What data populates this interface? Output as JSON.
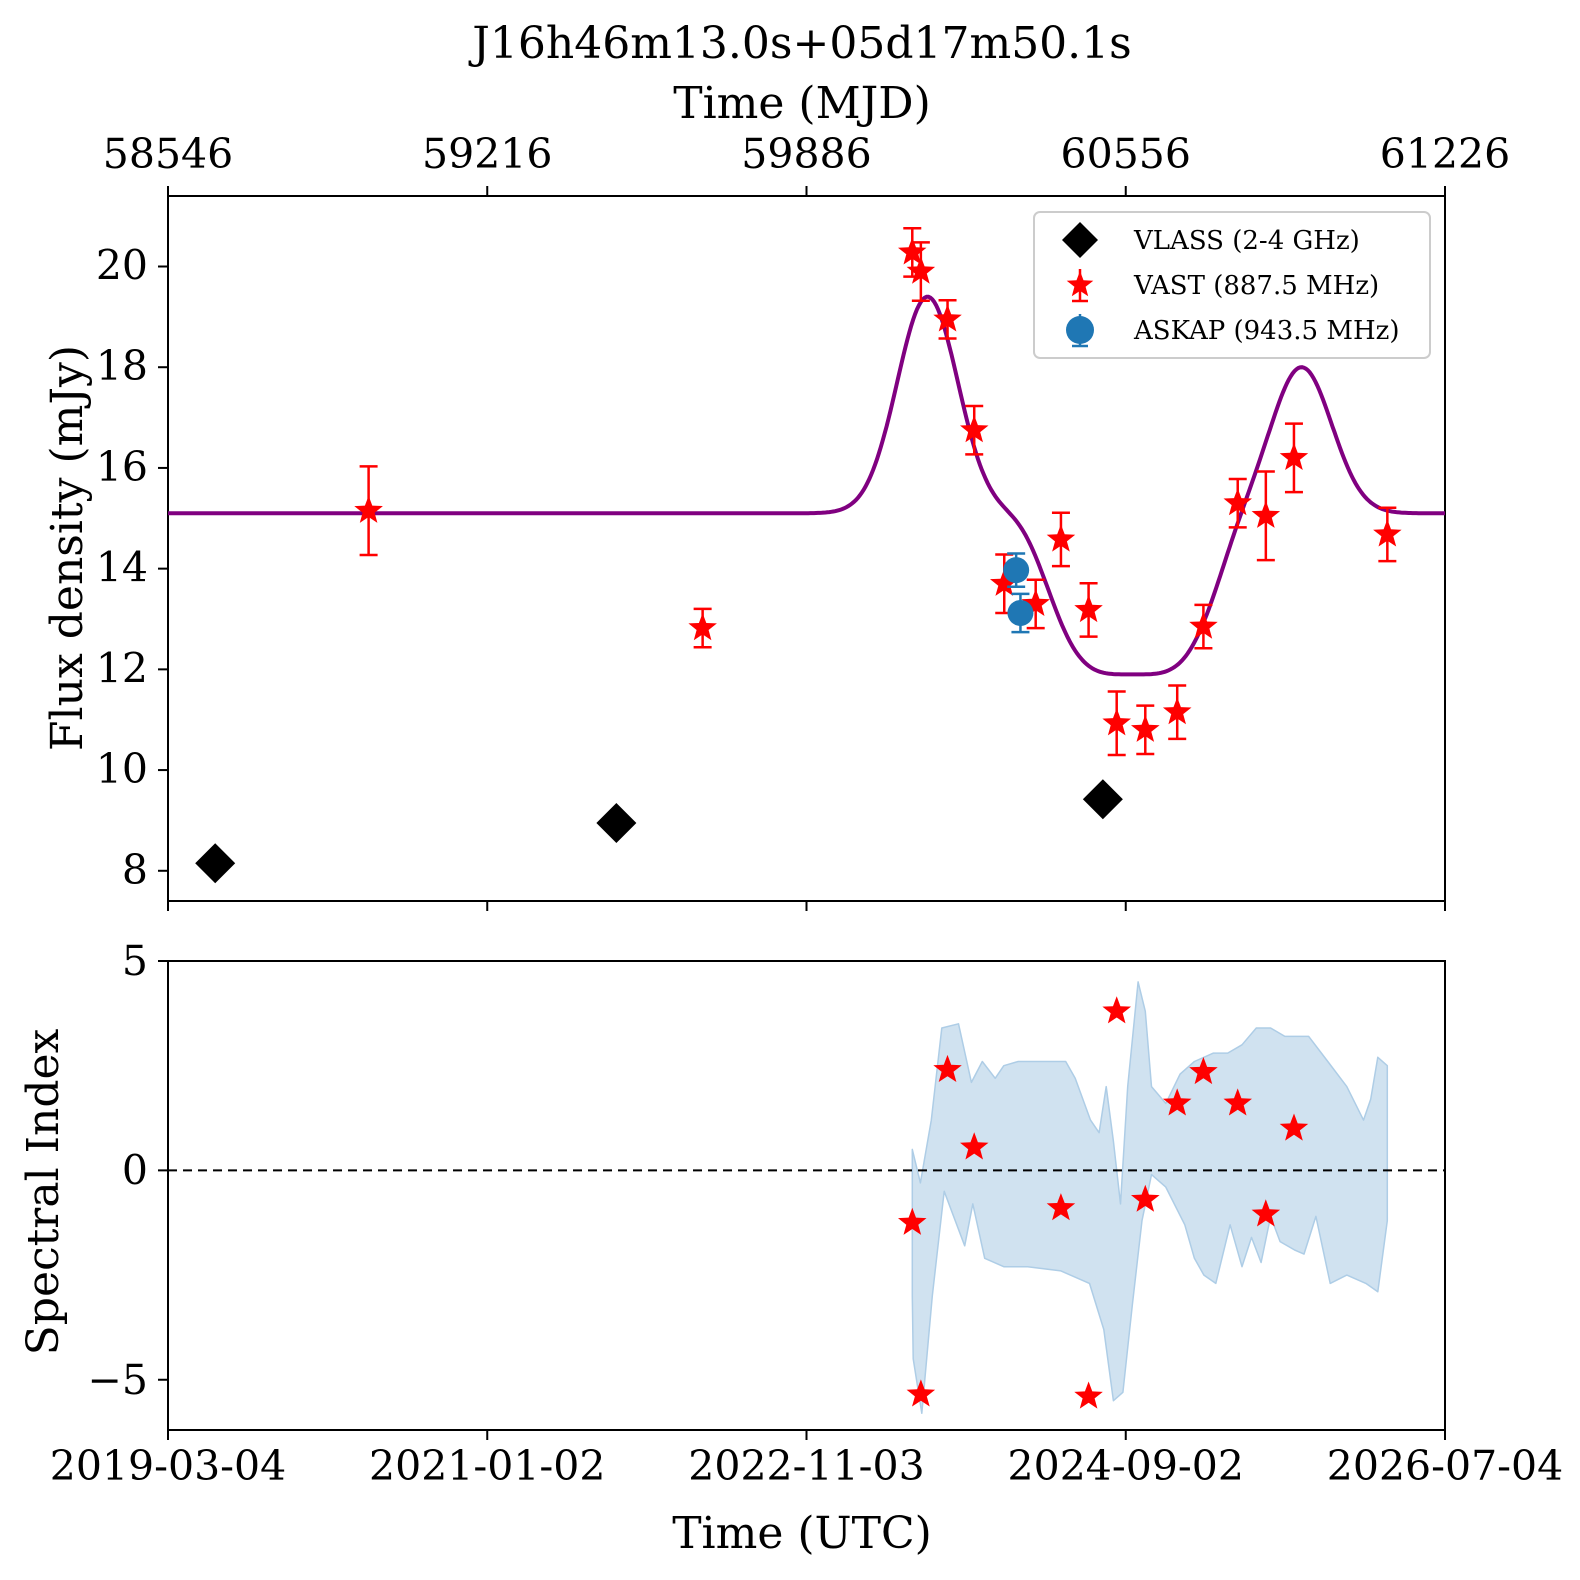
{
  "figure": {
    "title": "J16h46m13.0s+05d17m50.1s"
  },
  "chart_data": [
    {
      "type": "scatter",
      "panel": "top",
      "title": "J16h46m13.0s+05d17m50.1s",
      "xlabel": "Time (UTC)",
      "xlabel_top": "Time (MJD)",
      "ylabel": "Flux density (mJy)",
      "xlim": [
        58546,
        61226
      ],
      "ylim": [
        7.4,
        21.4
      ],
      "x_ticks_top": [
        "58546",
        "59216",
        "59886",
        "60556",
        "61226"
      ],
      "x_ticks_top_values": [
        58546,
        59216,
        59886,
        60556,
        61226
      ],
      "y_ticks": [
        "8",
        "10",
        "12",
        "14",
        "16",
        "18",
        "20"
      ],
      "y_ticks_values": [
        8,
        10,
        12,
        14,
        16,
        18,
        20
      ],
      "grid": false,
      "legend_position": "top-right",
      "series": [
        {
          "name": "VLASS (2-4 GHz)",
          "marker": "diamond",
          "color": "#000000",
          "points": [
            {
              "x": 58645,
              "y": 8.15
            },
            {
              "x": 59487,
              "y": 8.95
            },
            {
              "x": 60508,
              "y": 9.42
            }
          ]
        },
        {
          "name": "VAST (887.5 MHz)",
          "marker": "star",
          "color": "#ff0000",
          "points": [
            {
              "x": 58967,
              "y": 15.15,
              "err": 0.88
            },
            {
              "x": 59668,
              "y": 12.82,
              "err": 0.38
            },
            {
              "x": 60108,
              "y": 20.28,
              "err": 0.48
            },
            {
              "x": 60126,
              "y": 19.9,
              "err": 0.58
            },
            {
              "x": 60182,
              "y": 18.95,
              "err": 0.38
            },
            {
              "x": 60238,
              "y": 16.75,
              "err": 0.48
            },
            {
              "x": 60301,
              "y": 13.7,
              "err": 0.58
            },
            {
              "x": 60367,
              "y": 13.3,
              "err": 0.48
            },
            {
              "x": 60420,
              "y": 14.58,
              "err": 0.53
            },
            {
              "x": 60478,
              "y": 13.18,
              "err": 0.53
            },
            {
              "x": 60537,
              "y": 10.93,
              "err": 0.63
            },
            {
              "x": 60597,
              "y": 10.8,
              "err": 0.48
            },
            {
              "x": 60664,
              "y": 11.15,
              "err": 0.53
            },
            {
              "x": 60719,
              "y": 12.85,
              "err": 0.43
            },
            {
              "x": 60791,
              "y": 15.3,
              "err": 0.48
            },
            {
              "x": 60850,
              "y": 15.05,
              "err": 0.88
            },
            {
              "x": 60909,
              "y": 16.2,
              "err": 0.68
            },
            {
              "x": 61105,
              "y": 14.68,
              "err": 0.53
            }
          ]
        },
        {
          "name": "ASKAP (943.5 MHz)",
          "marker": "circle",
          "color": "#1f77b4",
          "points": [
            {
              "x": 60326,
              "y": 13.97,
              "err": 0.33
            },
            {
              "x": 60335,
              "y": 13.12,
              "err": 0.38
            }
          ]
        },
        {
          "name": "",
          "marker": "line",
          "color": "#800080",
          "baseline": 15.1,
          "components": [
            {
              "center": 60140,
              "amplitude": 4.3,
              "width": 90
            },
            {
              "center": 60570,
              "amplitude": -3.2,
              "width": 190,
              "shape": "flat-bottom"
            },
            {
              "center": 60925,
              "amplitude": 2.9,
              "width": 90
            }
          ]
        }
      ]
    },
    {
      "type": "scatter",
      "panel": "bottom",
      "xlabel": "Time (UTC)",
      "ylabel": "Spectral Index",
      "xlim": [
        58546,
        61226
      ],
      "ylim": [
        -6.2,
        5
      ],
      "x_ticks": [
        "2019-03-04",
        "2021-01-02",
        "2022-11-03",
        "2024-09-02",
        "2026-07-04"
      ],
      "x_ticks_values": [
        58546,
        59216,
        59886,
        60556,
        61226
      ],
      "y_ticks": [
        "5",
        "0",
        "−5"
      ],
      "y_ticks_values": [
        5,
        0,
        -5
      ],
      "reference_line": {
        "y": 0,
        "style": "dashed",
        "color": "#000000"
      },
      "series": [
        {
          "name": "",
          "marker": "star",
          "color": "#ff0000",
          "points": [
            {
              "x": 60108,
              "y": -1.25
            },
            {
              "x": 60126,
              "y": -5.35
            },
            {
              "x": 60182,
              "y": 2.4
            },
            {
              "x": 60238,
              "y": 0.55
            },
            {
              "x": 60420,
              "y": -0.9
            },
            {
              "x": 60478,
              "y": -5.4
            },
            {
              "x": 60537,
              "y": 3.8
            },
            {
              "x": 60597,
              "y": -0.7
            },
            {
              "x": 60664,
              "y": 1.6
            },
            {
              "x": 60719,
              "y": 2.35
            },
            {
              "x": 60791,
              "y": 1.6
            },
            {
              "x": 60850,
              "y": -1.05
            },
            {
              "x": 60909,
              "y": 1.0
            }
          ]
        },
        {
          "name": "",
          "marker": "band",
          "color": "#aecde6",
          "opacity": 0.58,
          "upper": [
            {
              "x": 60108,
              "y": 0.5
            },
            {
              "x": 60125,
              "y": -0.3
            },
            {
              "x": 60148,
              "y": 1.2
            },
            {
              "x": 60170,
              "y": 3.4
            },
            {
              "x": 60205,
              "y": 3.5
            },
            {
              "x": 60232,
              "y": 2.1
            },
            {
              "x": 60255,
              "y": 2.6
            },
            {
              "x": 60282,
              "y": 2.2
            },
            {
              "x": 60300,
              "y": 2.5
            },
            {
              "x": 60330,
              "y": 2.6
            },
            {
              "x": 60375,
              "y": 2.6
            },
            {
              "x": 60430,
              "y": 2.6
            },
            {
              "x": 60450,
              "y": 2.2
            },
            {
              "x": 60482,
              "y": 1.2
            },
            {
              "x": 60500,
              "y": 0.9
            },
            {
              "x": 60515,
              "y": 2.0
            },
            {
              "x": 60530,
              "y": 0.7
            },
            {
              "x": 60545,
              "y": -0.8
            },
            {
              "x": 60560,
              "y": 2.0
            },
            {
              "x": 60582,
              "y": 4.5
            },
            {
              "x": 60597,
              "y": 3.8
            },
            {
              "x": 60610,
              "y": 2.0
            },
            {
              "x": 60640,
              "y": 1.6
            },
            {
              "x": 60670,
              "y": 2.3
            },
            {
              "x": 60700,
              "y": 2.6
            },
            {
              "x": 60740,
              "y": 2.8
            },
            {
              "x": 60770,
              "y": 2.8
            },
            {
              "x": 60800,
              "y": 3.0
            },
            {
              "x": 60830,
              "y": 3.4
            },
            {
              "x": 60860,
              "y": 3.4
            },
            {
              "x": 60890,
              "y": 3.2
            },
            {
              "x": 60940,
              "y": 3.2
            },
            {
              "x": 60980,
              "y": 2.6
            },
            {
              "x": 61020,
              "y": 2.0
            },
            {
              "x": 61055,
              "y": 1.2
            },
            {
              "x": 61070,
              "y": 1.7
            },
            {
              "x": 61085,
              "y": 2.7
            },
            {
              "x": 61105,
              "y": 2.5
            }
          ],
          "lower": [
            {
              "x": 61105,
              "y": -1.2
            },
            {
              "x": 61085,
              "y": -2.9
            },
            {
              "x": 61060,
              "y": -2.7
            },
            {
              "x": 61020,
              "y": -2.5
            },
            {
              "x": 60985,
              "y": -2.7
            },
            {
              "x": 60955,
              "y": -1.1
            },
            {
              "x": 60930,
              "y": -2.0
            },
            {
              "x": 60910,
              "y": -1.9
            },
            {
              "x": 60880,
              "y": -1.7
            },
            {
              "x": 60860,
              "y": -1.1
            },
            {
              "x": 60840,
              "y": -2.2
            },
            {
              "x": 60820,
              "y": -1.6
            },
            {
              "x": 60800,
              "y": -2.3
            },
            {
              "x": 60775,
              "y": -1.3
            },
            {
              "x": 60745,
              "y": -2.7
            },
            {
              "x": 60720,
              "y": -2.5
            },
            {
              "x": 60700,
              "y": -2.1
            },
            {
              "x": 60680,
              "y": -1.3
            },
            {
              "x": 60640,
              "y": -0.4
            },
            {
              "x": 60610,
              "y": -0.1
            },
            {
              "x": 60590,
              "y": -1.2
            },
            {
              "x": 60570,
              "y": -3.2
            },
            {
              "x": 60550,
              "y": -5.3
            },
            {
              "x": 60530,
              "y": -5.5
            },
            {
              "x": 60510,
              "y": -3.8
            },
            {
              "x": 60480,
              "y": -2.7
            },
            {
              "x": 60420,
              "y": -2.4
            },
            {
              "x": 60350,
              "y": -2.3
            },
            {
              "x": 60300,
              "y": -2.3
            },
            {
              "x": 60260,
              "y": -2.1
            },
            {
              "x": 60235,
              "y": -0.8
            },
            {
              "x": 60218,
              "y": -1.8
            },
            {
              "x": 60198,
              "y": -1.2
            },
            {
              "x": 60175,
              "y": -0.5
            },
            {
              "x": 60150,
              "y": -3.0
            },
            {
              "x": 60128,
              "y": -5.8
            },
            {
              "x": 60110,
              "y": -4.5
            },
            {
              "x": 60108,
              "y": -3.0
            }
          ]
        }
      ]
    }
  ]
}
